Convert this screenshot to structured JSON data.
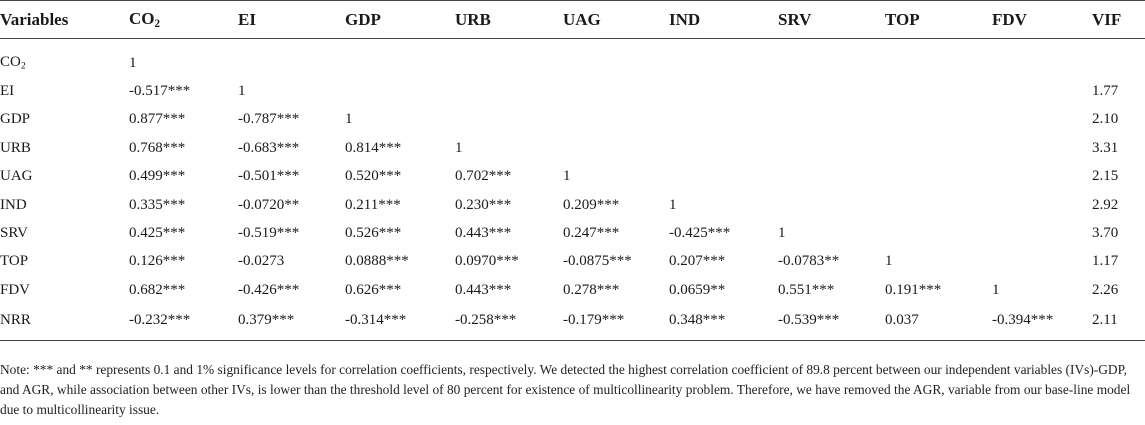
{
  "table": {
    "headers": [
      {
        "text": "Variables",
        "sub": ""
      },
      {
        "text": "CO",
        "sub": "2"
      },
      {
        "text": "EI",
        "sub": ""
      },
      {
        "text": "GDP",
        "sub": ""
      },
      {
        "text": "URB",
        "sub": ""
      },
      {
        "text": "UAG",
        "sub": ""
      },
      {
        "text": "IND",
        "sub": ""
      },
      {
        "text": "SRV",
        "sub": ""
      },
      {
        "text": "TOP",
        "sub": ""
      },
      {
        "text": "FDV",
        "sub": ""
      },
      {
        "text": "VIF",
        "sub": ""
      }
    ],
    "rows": [
      {
        "label": "CO",
        "label_sub": "2",
        "cells": [
          "1",
          "",
          "",
          "",
          "",
          "",
          "",
          "",
          "",
          ""
        ]
      },
      {
        "label": "EI",
        "label_sub": "",
        "cells": [
          "-0.517***",
          "1",
          "",
          "",
          "",
          "",
          "",
          "",
          "",
          "1.77"
        ]
      },
      {
        "label": "GDP",
        "label_sub": "",
        "cells": [
          "0.877***",
          "-0.787***",
          "1",
          "",
          "",
          "",
          "",
          "",
          "",
          "2.10"
        ]
      },
      {
        "label": "URB",
        "label_sub": "",
        "cells": [
          "0.768***",
          "-0.683***",
          "0.814***",
          "1",
          "",
          "",
          "",
          "",
          "",
          "3.31"
        ]
      },
      {
        "label": "UAG",
        "label_sub": "",
        "cells": [
          "0.499***",
          "-0.501***",
          "0.520***",
          "0.702***",
          "1",
          "",
          "",
          "",
          "",
          "2.15"
        ]
      },
      {
        "label": "IND",
        "label_sub": "",
        "cells": [
          "0.335***",
          "-0.0720**",
          "0.211***",
          "0.230***",
          "0.209***",
          "1",
          "",
          "",
          "",
          "2.92"
        ]
      },
      {
        "label": "SRV",
        "label_sub": "",
        "cells": [
          "0.425***",
          "-0.519***",
          "0.526***",
          "0.443***",
          "0.247***",
          "-0.425***",
          "1",
          "",
          "",
          "3.70"
        ]
      },
      {
        "label": "TOP",
        "label_sub": "",
        "cells": [
          "0.126***",
          "-0.0273",
          "0.0888***",
          "0.0970***",
          "-0.0875***",
          "0.207***",
          "-0.0783**",
          "1",
          "",
          "1.17"
        ]
      },
      {
        "label": "FDV",
        "label_sub": "",
        "cells": [
          "0.682***",
          "-0.426***",
          "0.626***",
          "0.443***",
          "0.278***",
          "0.0659**",
          "0.551***",
          "0.191***",
          "1",
          "2.26"
        ]
      },
      {
        "label": "NRR",
        "label_sub": "",
        "cells": [
          "-0.232***",
          "0.379***",
          "-0.314***",
          "-0.258***",
          "-0.179***",
          "0.348***",
          "-0.539***",
          "0.037",
          "-0.394***",
          "2.11"
        ]
      }
    ]
  },
  "note": "Note: *** and ** represents 0.1 and 1% significance levels for correlation coefficients, respectively. We detected the highest correlation coefficient of 89.8 percent between our independent variables (IVs)-GDP, and AGR, while association between other IVs, is lower than the threshold level of 80 percent for existence of multicollinearity problem. Therefore, we have removed the AGR, variable from our base-line model due to multicollinearity issue."
}
